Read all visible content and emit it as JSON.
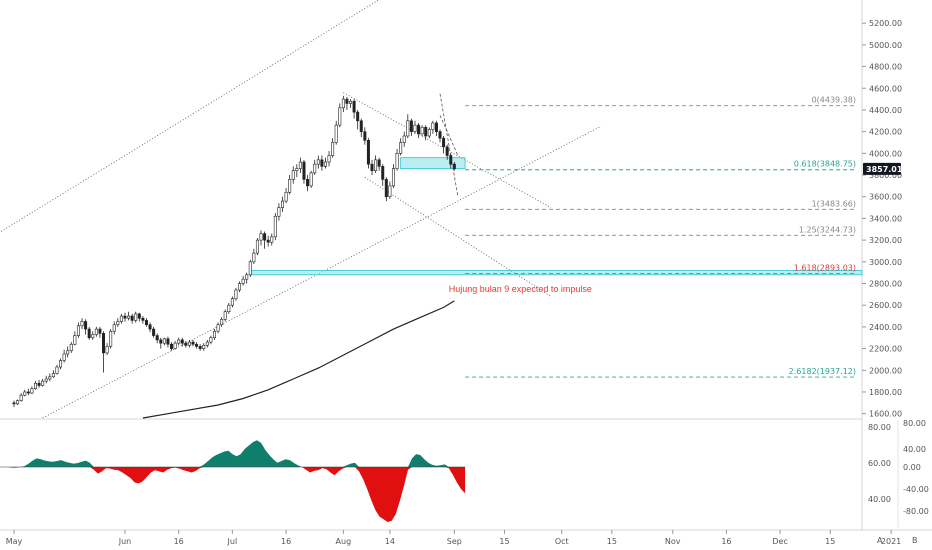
{
  "chart_data": {
    "type": "candlestick",
    "main_y_ticks": [
      5200,
      5000,
      4800,
      4600,
      4400,
      4200,
      4000,
      3800,
      3600,
      3400,
      3200,
      3000,
      2800,
      2600,
      2400,
      2200,
      2000,
      1800,
      1600
    ],
    "main_y_tick_labels": [
      "5200.00",
      "5000.00",
      "4800.00",
      "4600.00",
      "4400.00",
      "4200.00",
      "4000.00",
      "3800.00",
      "3600.00",
      "3400.00",
      "3200.00",
      "3000.00",
      "2800.00",
      "2600.00",
      "2400.00",
      "2200.00",
      "2000.00",
      "1800.00",
      "1600.00"
    ],
    "ylim_main": [
      1560,
      5340
    ],
    "x_ticks": [
      {
        "label": "May",
        "date": "2020-05-01"
      },
      {
        "label": "Jun",
        "date": "2020-06-01"
      },
      {
        "label": "16",
        "date": "2020-06-16"
      },
      {
        "label": "Jul",
        "date": "2020-07-01"
      },
      {
        "label": "16",
        "date": "2020-07-16"
      },
      {
        "label": "Aug",
        "date": "2020-08-01"
      },
      {
        "label": "14",
        "date": "2020-08-14"
      },
      {
        "label": "Sep",
        "date": "2020-09-01"
      },
      {
        "label": "15",
        "date": "2020-09-15"
      },
      {
        "label": "Oct",
        "date": "2020-10-01"
      },
      {
        "label": "15",
        "date": "2020-10-15"
      },
      {
        "label": "Nov",
        "date": "2020-11-01"
      },
      {
        "label": "16",
        "date": "2020-11-16"
      },
      {
        "label": "Dec",
        "date": "2020-12-01"
      },
      {
        "label": "15",
        "date": "2020-12-15"
      },
      {
        "label": "2021",
        "date": "2021-01-01"
      }
    ],
    "current_price": "3857.01",
    "colors": {
      "up": "#26a69a",
      "down": "#ef5350",
      "candle": "#333333",
      "fib": "#26a69a",
      "fib_gray": "#888888",
      "zone": "#7fdfe6",
      "ma": "#222222",
      "osc_pos": "#0f7f6b",
      "osc_neg": "#e01010",
      "annotation": "#e53935"
    },
    "candles": [
      [
        "2020-05-01",
        1700,
        1690,
        1720,
        1660
      ],
      [
        "2020-05-02",
        1690,
        1720,
        1730,
        1680
      ],
      [
        "2020-05-03",
        1720,
        1770,
        1790,
        1710
      ],
      [
        "2020-05-04",
        1770,
        1800,
        1820,
        1760
      ],
      [
        "2020-05-05",
        1800,
        1790,
        1830,
        1770
      ],
      [
        "2020-05-06",
        1790,
        1830,
        1850,
        1780
      ],
      [
        "2020-05-07",
        1830,
        1880,
        1900,
        1820
      ],
      [
        "2020-05-08",
        1880,
        1860,
        1910,
        1840
      ],
      [
        "2020-05-09",
        1860,
        1900,
        1920,
        1850
      ],
      [
        "2020-05-10",
        1900,
        1920,
        1950,
        1880
      ],
      [
        "2020-05-11",
        1920,
        1940,
        1970,
        1900
      ],
      [
        "2020-05-12",
        1940,
        1970,
        2000,
        1930
      ],
      [
        "2020-05-13",
        1970,
        2030,
        2050,
        1960
      ],
      [
        "2020-05-14",
        2030,
        2090,
        2110,
        2010
      ],
      [
        "2020-05-15",
        2090,
        2150,
        2190,
        2070
      ],
      [
        "2020-05-16",
        2150,
        2180,
        2220,
        2120
      ],
      [
        "2020-05-17",
        2180,
        2240,
        2260,
        2160
      ],
      [
        "2020-05-18",
        2240,
        2320,
        2360,
        2230
      ],
      [
        "2020-05-19",
        2320,
        2410,
        2440,
        2300
      ],
      [
        "2020-05-20",
        2410,
        2450,
        2480,
        2380
      ],
      [
        "2020-05-21",
        2450,
        2380,
        2470,
        2330
      ],
      [
        "2020-05-22",
        2380,
        2300,
        2400,
        2280
      ],
      [
        "2020-05-23",
        2300,
        2330,
        2360,
        2280
      ],
      [
        "2020-05-24",
        2330,
        2380,
        2400,
        2310
      ],
      [
        "2020-05-25",
        2380,
        2340,
        2400,
        2300
      ],
      [
        "2020-05-26",
        2340,
        2160,
        2360,
        1980
      ],
      [
        "2020-05-27",
        2160,
        2220,
        2250,
        2140
      ],
      [
        "2020-05-28",
        2220,
        2360,
        2380,
        2200
      ],
      [
        "2020-05-29",
        2360,
        2420,
        2450,
        2330
      ],
      [
        "2020-05-30",
        2420,
        2450,
        2480,
        2400
      ],
      [
        "2020-05-31",
        2450,
        2500,
        2520,
        2430
      ],
      [
        "2020-06-01",
        2500,
        2480,
        2530,
        2450
      ],
      [
        "2020-06-02",
        2480,
        2500,
        2540,
        2460
      ],
      [
        "2020-06-03",
        2500,
        2460,
        2520,
        2430
      ],
      [
        "2020-06-04",
        2460,
        2520,
        2540,
        2440
      ],
      [
        "2020-06-05",
        2520,
        2480,
        2530,
        2450
      ],
      [
        "2020-06-06",
        2480,
        2460,
        2500,
        2430
      ],
      [
        "2020-06-07",
        2460,
        2420,
        2480,
        2400
      ],
      [
        "2020-06-08",
        2420,
        2380,
        2440,
        2350
      ],
      [
        "2020-06-09",
        2380,
        2320,
        2400,
        2300
      ],
      [
        "2020-06-10",
        2320,
        2280,
        2340,
        2250
      ],
      [
        "2020-06-11",
        2280,
        2250,
        2300,
        2200
      ],
      [
        "2020-06-12",
        2250,
        2290,
        2300,
        2230
      ],
      [
        "2020-06-13",
        2290,
        2240,
        2310,
        2210
      ],
      [
        "2020-06-14",
        2240,
        2200,
        2260,
        2180
      ],
      [
        "2020-06-15",
        2200,
        2250,
        2270,
        2190
      ],
      [
        "2020-06-16",
        2250,
        2280,
        2300,
        2230
      ],
      [
        "2020-06-17",
        2280,
        2250,
        2300,
        2220
      ],
      [
        "2020-06-18",
        2250,
        2230,
        2270,
        2210
      ],
      [
        "2020-06-19",
        2230,
        2260,
        2280,
        2210
      ],
      [
        "2020-06-20",
        2260,
        2240,
        2280,
        2220
      ],
      [
        "2020-06-21",
        2240,
        2220,
        2260,
        2200
      ],
      [
        "2020-06-22",
        2220,
        2200,
        2240,
        2180
      ],
      [
        "2020-06-23",
        2200,
        2230,
        2250,
        2180
      ],
      [
        "2020-06-24",
        2230,
        2260,
        2280,
        2210
      ],
      [
        "2020-06-25",
        2260,
        2300,
        2320,
        2240
      ],
      [
        "2020-06-26",
        2300,
        2360,
        2380,
        2280
      ],
      [
        "2020-06-27",
        2360,
        2420,
        2440,
        2340
      ],
      [
        "2020-06-28",
        2420,
        2470,
        2490,
        2400
      ],
      [
        "2020-06-29",
        2470,
        2540,
        2560,
        2450
      ],
      [
        "2020-06-30",
        2540,
        2600,
        2620,
        2520
      ],
      [
        "2020-07-01",
        2600,
        2660,
        2680,
        2580
      ],
      [
        "2020-07-02",
        2660,
        2740,
        2760,
        2640
      ],
      [
        "2020-07-03",
        2740,
        2800,
        2820,
        2720
      ],
      [
        "2020-07-04",
        2800,
        2840,
        2870,
        2780
      ],
      [
        "2020-07-05",
        2840,
        2880,
        2900,
        2800
      ],
      [
        "2020-07-06",
        2880,
        3000,
        3020,
        2860
      ],
      [
        "2020-07-07",
        3000,
        3080,
        3120,
        2980
      ],
      [
        "2020-07-08",
        3080,
        3200,
        3220,
        3060
      ],
      [
        "2020-07-09",
        3200,
        3260,
        3290,
        3150
      ],
      [
        "2020-07-10",
        3260,
        3200,
        3280,
        3120
      ],
      [
        "2020-07-11",
        3200,
        3180,
        3240,
        3140
      ],
      [
        "2020-07-12",
        3180,
        3230,
        3260,
        3150
      ],
      [
        "2020-07-13",
        3230,
        3420,
        3450,
        3200
      ],
      [
        "2020-07-14",
        3420,
        3500,
        3540,
        3380
      ],
      [
        "2020-07-15",
        3500,
        3560,
        3600,
        3460
      ],
      [
        "2020-07-16",
        3560,
        3640,
        3680,
        3540
      ],
      [
        "2020-07-17",
        3640,
        3760,
        3800,
        3620
      ],
      [
        "2020-07-18",
        3760,
        3840,
        3880,
        3720
      ],
      [
        "2020-07-19",
        3840,
        3860,
        3900,
        3780
      ],
      [
        "2020-07-20",
        3860,
        3920,
        3960,
        3820
      ],
      [
        "2020-07-21",
        3920,
        3760,
        3940,
        3720
      ],
      [
        "2020-07-22",
        3760,
        3700,
        3800,
        3650
      ],
      [
        "2020-07-23",
        3700,
        3820,
        3840,
        3680
      ],
      [
        "2020-07-24",
        3820,
        3900,
        3940,
        3800
      ],
      [
        "2020-07-25",
        3900,
        3940,
        3980,
        3860
      ],
      [
        "2020-07-26",
        3940,
        3880,
        3980,
        3840
      ],
      [
        "2020-07-27",
        3880,
        3920,
        3960,
        3860
      ],
      [
        "2020-07-28",
        3920,
        3980,
        4020,
        3880
      ],
      [
        "2020-07-29",
        3980,
        4100,
        4140,
        3960
      ],
      [
        "2020-07-30",
        4100,
        4260,
        4300,
        4080
      ],
      [
        "2020-07-31",
        4260,
        4420,
        4460,
        4240
      ],
      [
        "2020-08-01",
        4420,
        4500,
        4530,
        4380
      ],
      [
        "2020-08-02",
        4500,
        4460,
        4520,
        4400
      ],
      [
        "2020-08-03",
        4460,
        4480,
        4500,
        4420
      ],
      [
        "2020-08-04",
        4480,
        4380,
        4500,
        4320
      ],
      [
        "2020-08-05",
        4380,
        4300,
        4400,
        4220
      ],
      [
        "2020-08-06",
        4300,
        4200,
        4320,
        4150
      ],
      [
        "2020-08-07",
        4200,
        4120,
        4240,
        4080
      ],
      [
        "2020-08-08",
        4120,
        3900,
        4140,
        3860
      ],
      [
        "2020-08-09",
        3900,
        3840,
        3940,
        3800
      ],
      [
        "2020-08-10",
        3840,
        3940,
        3980,
        3820
      ],
      [
        "2020-08-11",
        3940,
        3880,
        3960,
        3840
      ],
      [
        "2020-08-12",
        3880,
        3760,
        3900,
        3700
      ],
      [
        "2020-08-13",
        3760,
        3600,
        3780,
        3560
      ],
      [
        "2020-08-14",
        3600,
        3700,
        3740,
        3580
      ],
      [
        "2020-08-15",
        3700,
        3860,
        3900,
        3680
      ],
      [
        "2020-08-16",
        3860,
        4000,
        4040,
        3840
      ],
      [
        "2020-08-17",
        4000,
        4100,
        4140,
        3980
      ],
      [
        "2020-08-18",
        4100,
        4160,
        4200,
        4060
      ],
      [
        "2020-08-19",
        4160,
        4300,
        4360,
        4140
      ],
      [
        "2020-08-20",
        4300,
        4200,
        4320,
        4160
      ],
      [
        "2020-08-21",
        4200,
        4260,
        4300,
        4180
      ],
      [
        "2020-08-22",
        4260,
        4180,
        4280,
        4140
      ],
      [
        "2020-08-23",
        4180,
        4240,
        4260,
        4160
      ],
      [
        "2020-08-24",
        4240,
        4160,
        4260,
        4120
      ],
      [
        "2020-08-25",
        4160,
        4220,
        4240,
        4140
      ],
      [
        "2020-08-26",
        4220,
        4280,
        4300,
        4180
      ],
      [
        "2020-08-27",
        4280,
        4200,
        4300,
        4160
      ],
      [
        "2020-08-28",
        4200,
        4140,
        4220,
        4100
      ],
      [
        "2020-08-29",
        4140,
        4060,
        4160,
        4000
      ],
      [
        "2020-08-30",
        4060,
        3980,
        4080,
        3940
      ],
      [
        "2020-08-31",
        3980,
        3900,
        4000,
        3860
      ],
      [
        "2020-09-01",
        3900,
        3857,
        3920,
        3840
      ]
    ],
    "ma_line": [
      [
        "2020-06-06",
        1560
      ],
      [
        "2020-06-13",
        1600
      ],
      [
        "2020-06-20",
        1640
      ],
      [
        "2020-06-27",
        1680
      ],
      [
        "2020-07-04",
        1740
      ],
      [
        "2020-07-11",
        1820
      ],
      [
        "2020-07-18",
        1920
      ],
      [
        "2020-07-25",
        2020
      ],
      [
        "2020-08-01",
        2140
      ],
      [
        "2020-08-08",
        2260
      ],
      [
        "2020-08-15",
        2380
      ],
      [
        "2020-08-22",
        2480
      ],
      [
        "2020-08-29",
        2580
      ],
      [
        "2020-09-01",
        2640
      ]
    ],
    "fib_levels": [
      {
        "label": "0(4439.38)",
        "value": 4439.38,
        "color": "#888888"
      },
      {
        "label": "0.618(3848.75)",
        "value": 3848.75,
        "color": "#26a69a"
      },
      {
        "label": "1(3483.66)",
        "value": 3483.66,
        "color": "#888888"
      },
      {
        "label": "1.25(3244.73)",
        "value": 3244.73,
        "color": "#888888"
      },
      {
        "label": "1.618(2893.03)",
        "value": 2893.03,
        "color": "#e53935"
      },
      {
        "label": "2.6182(1937.12)",
        "value": 1937.12,
        "color": "#26a69a"
      }
    ],
    "zones": [
      {
        "start": "2020-08-17",
        "end": "2020-09-04",
        "low": 3860,
        "high": 3960
      },
      {
        "start": "2020-07-06",
        "end": "2021-01-01",
        "low": 2880,
        "high": 2920
      }
    ],
    "trendlines": [
      {
        "from": [
          "2020-04-21",
          3150
        ],
        "to": [
          "2020-08-20",
          5600
        ],
        "style": "dotted"
      },
      {
        "from": [
          "2020-05-09",
          1560
        ],
        "to": [
          "2020-10-12",
          4250
        ],
        "style": "dotted"
      },
      {
        "from": [
          "2020-08-01",
          4560
        ],
        "to": [
          "2020-09-28",
          3500
        ],
        "style": "dotted"
      },
      {
        "from": [
          "2020-08-07",
          3780
        ],
        "to": [
          "2020-09-28",
          2680
        ],
        "style": "dotted"
      },
      {
        "from": [
          "2020-08-28",
          4550
        ],
        "to": [
          "2020-09-02",
          3600
        ],
        "style": "dashed"
      },
      {
        "from": [
          "2020-08-28",
          4350
        ],
        "to": [
          "2020-09-02",
          3980
        ],
        "style": "dashed"
      }
    ],
    "annotation": {
      "text": "Hujung bulan 9 expected to impulse",
      "date": "2020-08-31",
      "value": 2750
    },
    "oscillator": {
      "y_ticks_left": [
        80,
        60,
        40
      ],
      "y_tick_labels_left": [
        "80.00",
        "60.00",
        "40.00"
      ],
      "y_ticks_right": [
        80,
        40,
        0,
        -40,
        -80
      ],
      "y_tick_labels_right": [
        "80.00",
        "40.00",
        "0.00",
        "-40.00",
        "-80.00"
      ],
      "ylim": [
        -100,
        100
      ],
      "values": [
        0,
        0,
        0,
        -1,
        -1,
        0,
        2,
        8,
        15,
        20,
        18,
        15,
        13,
        12,
        14,
        16,
        12,
        10,
        8,
        9,
        12,
        15,
        10,
        -5,
        -12,
        -8,
        -2,
        -3,
        -5,
        -6,
        -10,
        -15,
        -20,
        -28,
        -30,
        -26,
        -18,
        -10,
        -6,
        -8,
        -10,
        -5,
        -2,
        -1,
        -3,
        -6,
        -8,
        -10,
        -7,
        -2,
        6,
        14,
        22,
        28,
        32,
        36,
        38,
        30,
        25,
        30,
        42,
        50,
        58,
        62,
        56,
        40,
        28,
        18,
        10,
        14,
        18,
        16,
        10,
        4,
        0,
        -5,
        -10,
        -7,
        -6,
        -2,
        -4,
        -10,
        -15,
        -8,
        -3,
        4,
        8,
        10,
        -8,
        -22,
        -40,
        -60,
        -78,
        -90,
        -95,
        -100,
        -98,
        -86,
        -62,
        -35,
        -5,
        20,
        30,
        28,
        18,
        10,
        5,
        3,
        4,
        6,
        -2,
        -14,
        -28,
        -40,
        -48
      ]
    },
    "buttons": {
      "a": "A",
      "b": "B"
    }
  }
}
